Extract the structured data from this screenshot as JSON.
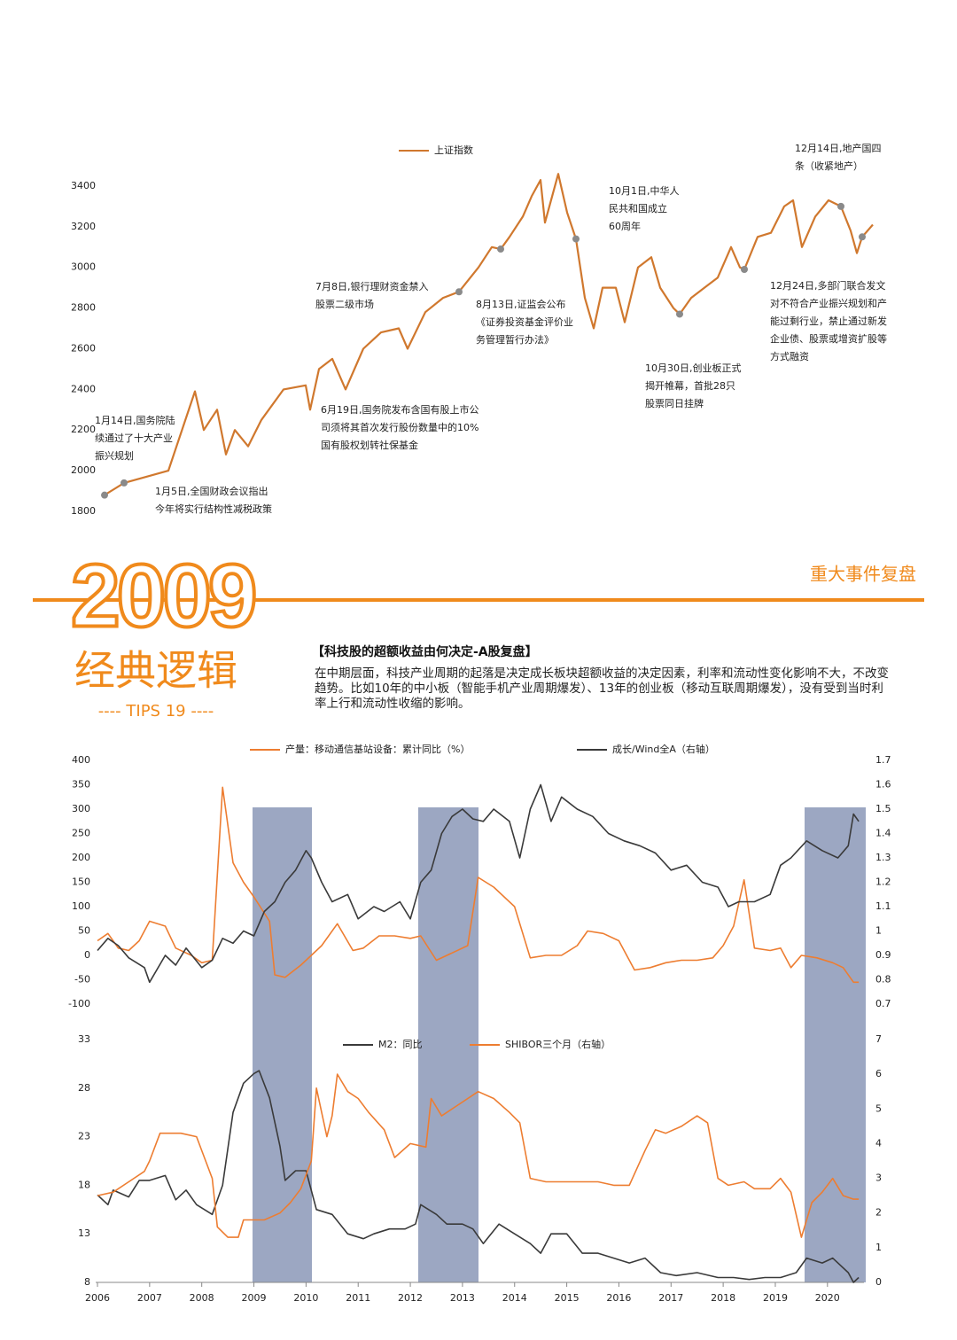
{
  "header": {
    "year": "2009",
    "section": "重大事件复盘",
    "subtitle": "经典逻辑",
    "tips": "---- TIPS 19 ----",
    "heading": "【科技股的超额收益由何决定-A股复盘】",
    "paragraph": "在中期层面，科技产业周期的起落是决定成长板块超额收益的决定因素，利率和流动性变化影响不大，不改变趋势。比如10年的中小板（智能手机产业周期爆发）、13年的创业板（移动互联周期爆发），没有受到当时利率上行和流动性收缩的影响。"
  },
  "chart_data": [
    {
      "type": "line",
      "series": [
        {
          "name": "上证指数",
          "color": "#d0782e",
          "values": [
            1880,
            1940,
            2000,
            2390,
            2200,
            2300,
            2080,
            2200,
            2120,
            2250,
            2400,
            2420,
            2300,
            2500,
            2550,
            2400,
            2600,
            2680,
            2700,
            2600,
            2780,
            2850,
            2880,
            3000,
            3100,
            3090,
            3150,
            3250,
            3350,
            3430,
            3220,
            3460,
            3270,
            3140,
            2850,
            2700,
            2900,
            2900,
            2730,
            3000,
            3050,
            2900,
            2800,
            2770,
            2850,
            2900,
            2950,
            3100,
            3000,
            2990,
            3150,
            3170,
            3300,
            3330,
            3100,
            3250,
            3330,
            3300,
            3180,
            3070,
            3150,
            3210
          ]
        }
      ],
      "ylim": [
        1800,
        3500
      ],
      "yticks": [
        1800,
        2000,
        2200,
        2400,
        2600,
        2800,
        3000,
        3200,
        3400
      ],
      "annotations": [
        [
          "1月14日,国务院陆",
          "续通过了十大产业",
          "振兴规划"
        ],
        [
          "1月5日,全国财政会议指出",
          "今年将实行结构性减税政策"
        ],
        [
          "6月19日,国务院发布含国有股上市公",
          "司须将其首次发行股份数量中的10%",
          "国有股权划转社保基金"
        ],
        [
          "7月8日,银行理财资金禁入",
          "股票二级市场"
        ],
        [
          "8月13日,证监会公布",
          "《证券投资基金评价业",
          "务管理暂行办法》"
        ],
        [
          "10月1日,中华人",
          "民共和国成立",
          "60周年"
        ],
        [
          "10月30日,创业板正式",
          "揭开帷幕，首批28只",
          "股票同日挂牌"
        ],
        [
          "12月14日,地产国四",
          "条（收紧地产）"
        ],
        [
          "12月24日,多部门联合发文",
          "对不符合产业振兴规划和产",
          "能过剩行业，禁止通过新发",
          "企业债、股票或增资扩股等",
          "方式融资"
        ]
      ]
    },
    {
      "type": "line",
      "xlim": [
        2006,
        2020.7
      ],
      "ylim": [
        -100,
        400
      ],
      "yticks": [
        -100,
        -50,
        0,
        50,
        100,
        150,
        200,
        250,
        300,
        350,
        400
      ],
      "y2lim": [
        0.7,
        1.7
      ],
      "y2ticks": [
        0.7,
        0.8,
        0.9,
        1,
        1.1,
        1.2,
        1.3,
        1.4,
        1.5,
        1.6,
        1.7
      ],
      "series": [
        {
          "name": "产量：移动通信基站设备：累计同比（%）",
          "color": "#ed7d31",
          "x": [
            2006.0,
            2006.2,
            2006.4,
            2006.6,
            2006.8,
            2007.0,
            2007.3,
            2007.5,
            2007.8,
            2008.0,
            2008.2,
            2008.4,
            2008.6,
            2008.8,
            2009.0,
            2009.3,
            2009.4,
            2009.6,
            2009.9,
            2010.1,
            2010.3,
            2010.6,
            2010.9,
            2011.1,
            2011.4,
            2011.7,
            2012.0,
            2012.2,
            2012.5,
            2012.8,
            2013.1,
            2013.3,
            2013.6,
            2014.0,
            2014.3,
            2014.6,
            2014.9,
            2015.2,
            2015.4,
            2015.7,
            2016.0,
            2016.3,
            2016.6,
            2016.9,
            2017.2,
            2017.5,
            2017.8,
            2018.0,
            2018.2,
            2018.4,
            2018.6,
            2018.9,
            2019.1,
            2019.3,
            2019.5,
            2019.8,
            2020.1,
            2020.3,
            2020.5,
            2020.6
          ],
          "values": [
            30,
            45,
            15,
            10,
            30,
            70,
            60,
            15,
            0,
            -15,
            -10,
            345,
            190,
            150,
            120,
            70,
            -40,
            -45,
            -20,
            0,
            20,
            65,
            10,
            15,
            40,
            40,
            35,
            40,
            -10,
            5,
            20,
            160,
            140,
            100,
            -5,
            0,
            0,
            20,
            50,
            45,
            30,
            -30,
            -25,
            -15,
            -10,
            -10,
            -5,
            20,
            60,
            155,
            15,
            10,
            15,
            -25,
            0,
            -5,
            -15,
            -25,
            -55,
            -55
          ]
        },
        {
          "name": "成长/Wind全A（右轴）",
          "color": "#3a3a3a",
          "axis": "y2",
          "x": [
            2006.0,
            2006.2,
            2006.4,
            2006.6,
            2006.9,
            2007.0,
            2007.3,
            2007.5,
            2007.7,
            2008.0,
            2008.2,
            2008.4,
            2008.6,
            2008.8,
            2009.0,
            2009.2,
            2009.4,
            2009.6,
            2009.8,
            2010.0,
            2010.1,
            2010.3,
            2010.5,
            2010.8,
            2011.0,
            2011.3,
            2011.5,
            2011.8,
            2012.0,
            2012.2,
            2012.4,
            2012.6,
            2012.8,
            2013.0,
            2013.2,
            2013.4,
            2013.6,
            2013.9,
            2014.1,
            2014.3,
            2014.5,
            2014.7,
            2014.9,
            2015.2,
            2015.5,
            2015.8,
            2016.1,
            2016.4,
            2016.7,
            2017.0,
            2017.3,
            2017.6,
            2017.9,
            2018.1,
            2018.3,
            2018.6,
            2018.9,
            2019.1,
            2019.3,
            2019.6,
            2019.9,
            2020.2,
            2020.4,
            2020.5,
            2020.6
          ],
          "values": [
            0.92,
            0.97,
            0.94,
            0.89,
            0.85,
            0.79,
            0.9,
            0.86,
            0.93,
            0.85,
            0.88,
            0.97,
            0.95,
            1.0,
            0.98,
            1.08,
            1.12,
            1.2,
            1.25,
            1.33,
            1.3,
            1.2,
            1.12,
            1.15,
            1.05,
            1.1,
            1.08,
            1.12,
            1.05,
            1.2,
            1.25,
            1.4,
            1.47,
            1.5,
            1.46,
            1.45,
            1.5,
            1.45,
            1.3,
            1.5,
            1.6,
            1.45,
            1.55,
            1.5,
            1.47,
            1.4,
            1.37,
            1.35,
            1.32,
            1.25,
            1.27,
            1.2,
            1.18,
            1.1,
            1.12,
            1.12,
            1.15,
            1.27,
            1.3,
            1.37,
            1.33,
            1.3,
            1.35,
            1.48,
            1.45
          ]
        }
      ]
    },
    {
      "type": "line",
      "xlim": [
        2006,
        2020.7
      ],
      "xticks": [
        2006,
        2007,
        2008,
        2009,
        2010,
        2011,
        2012,
        2013,
        2014,
        2015,
        2016,
        2017,
        2018,
        2019,
        2020
      ],
      "ylim": [
        8,
        33
      ],
      "yticks": [
        8,
        13,
        18,
        23,
        28,
        33
      ],
      "y2lim": [
        0,
        7
      ],
      "y2ticks": [
        0,
        1,
        2,
        3,
        4,
        5,
        6,
        7
      ],
      "series": [
        {
          "name": "M2：同比",
          "color": "#3a3a3a",
          "x": [
            2006.0,
            2006.2,
            2006.3,
            2006.6,
            2006.8,
            2007.0,
            2007.3,
            2007.5,
            2007.7,
            2007.9,
            2008.2,
            2008.4,
            2008.6,
            2008.8,
            2009.0,
            2009.1,
            2009.3,
            2009.5,
            2009.6,
            2009.8,
            2010.0,
            2010.2,
            2010.5,
            2010.8,
            2011.1,
            2011.3,
            2011.6,
            2011.9,
            2012.1,
            2012.2,
            2012.5,
            2012.7,
            2013.0,
            2013.2,
            2013.4,
            2013.7,
            2014.0,
            2014.3,
            2014.5,
            2014.7,
            2015.0,
            2015.3,
            2015.6,
            2015.9,
            2016.2,
            2016.5,
            2016.8,
            2017.1,
            2017.5,
            2017.9,
            2018.2,
            2018.5,
            2018.8,
            2019.1,
            2019.4,
            2019.6,
            2019.9,
            2020.1,
            2020.4,
            2020.5,
            2020.6
          ],
          "values": [
            17,
            16,
            17.5,
            16.8,
            18.5,
            18.5,
            19,
            16.5,
            17.5,
            16,
            15,
            18,
            25.5,
            28.5,
            29.5,
            29.8,
            27,
            22,
            18.5,
            19.5,
            19.5,
            15.5,
            15,
            13,
            12.5,
            13,
            13.5,
            13.5,
            14,
            16,
            15,
            14,
            14,
            13.5,
            12,
            14,
            13,
            12,
            11,
            13,
            13,
            11,
            11,
            10.5,
            10,
            10.5,
            9,
            8.7,
            9,
            8.5,
            8.5,
            8.3,
            8.5,
            8.5,
            9,
            10.5,
            10,
            10.5,
            9,
            8,
            8.5
          ]
        },
        {
          "name": "SHIBOR三个月（右轴）",
          "color": "#ed7d31",
          "axis": "y2",
          "x": [
            2006.0,
            2006.3,
            2006.6,
            2006.9,
            2007.0,
            2007.2,
            2007.6,
            2007.9,
            2008.2,
            2008.3,
            2008.5,
            2008.7,
            2008.8,
            2009.2,
            2009.5,
            2009.7,
            2009.9,
            2010.1,
            2010.2,
            2010.4,
            2010.5,
            2010.6,
            2010.8,
            2011.0,
            2011.2,
            2011.5,
            2011.7,
            2012.0,
            2012.3,
            2012.4,
            2012.6,
            2013.0,
            2013.3,
            2013.6,
            2013.9,
            2014.1,
            2014.3,
            2014.6,
            2014.9,
            2015.2,
            2015.6,
            2015.9,
            2016.2,
            2016.5,
            2016.7,
            2016.9,
            2017.2,
            2017.5,
            2017.7,
            2017.9,
            2018.1,
            2018.4,
            2018.6,
            2018.9,
            2019.1,
            2019.3,
            2019.5,
            2019.7,
            2019.9,
            2020.1,
            2020.3,
            2020.5,
            2020.6
          ],
          "values": [
            2.5,
            2.6,
            2.9,
            3.2,
            3.5,
            4.3,
            4.3,
            4.2,
            3,
            1.6,
            1.3,
            1.3,
            1.8,
            1.8,
            2,
            2.3,
            2.7,
            3.5,
            5.6,
            4.2,
            4.8,
            6,
            5.5,
            5.3,
            4.9,
            4.4,
            3.6,
            4,
            3.9,
            5.3,
            4.8,
            5.2,
            5.5,
            5.3,
            4.9,
            4.6,
            3,
            2.9,
            2.9,
            2.9,
            2.9,
            2.8,
            2.8,
            3.8,
            4.4,
            4.3,
            4.5,
            4.8,
            4.6,
            3,
            2.8,
            2.9,
            2.7,
            2.7,
            3,
            2.6,
            1.3,
            2.3,
            2.6,
            3,
            2.5,
            2.4,
            2.4
          ]
        }
      ]
    }
  ]
}
